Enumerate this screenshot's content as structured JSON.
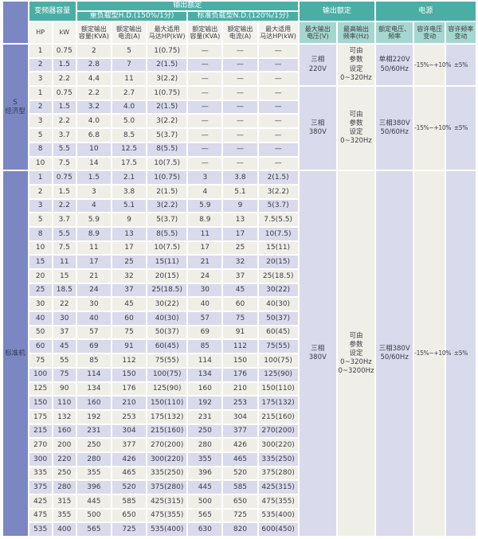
{
  "colors": {
    "header_teal": "#4BAEA4",
    "header_teal_light": "#A6D6D0",
    "section_blue": "#7B87C3",
    "row_lavender": "#D9DAEB",
    "row_beige": "#F0EFE7",
    "header_text": "#FFFFFF",
    "body_text": "#3B3B46"
  },
  "header": {
    "capacity": "变频器容量",
    "output_rating": "输出额定",
    "output_rating_2": "输出额定",
    "power": "电源",
    "heavy_duty": "重负载型H.D.(150%/1分)",
    "normal_duty": "标准负载型N.D.(120%/1分)",
    "cols": [
      "HP",
      "kW",
      "额定输出\n容量(KVA)",
      "额定输出\n电流(A)",
      "最大适用\n马达HP(kW)",
      "额定输出\n容量(KVA)",
      "额定输出\n电流(A)",
      "最大适用\n马达HP(kW)",
      "最大输出\n电压(V)",
      "最高输出\n频率(Hz)",
      "额定电压、\n频率",
      "容许电压\n变动",
      "容许频率\n变动"
    ]
  },
  "sections": [
    {
      "label": "S\n经济型",
      "stripe": [
        0,
        1,
        0,
        0,
        1,
        0,
        0,
        1,
        0
      ],
      "rows": [
        [
          "1",
          "0.75",
          "2",
          "5",
          "1(0.75)",
          "—",
          "—",
          "—"
        ],
        [
          "2",
          "1.5",
          "2.8",
          "7",
          "2(1.5)",
          "—",
          "—",
          "—"
        ],
        [
          "3",
          "2.2",
          "4.4",
          "11",
          "3(2.2)",
          "—",
          "—",
          "—"
        ],
        [
          "1",
          "0.75",
          "2.2",
          "2.7",
          "1(0.75)",
          "—",
          "—",
          "—"
        ],
        [
          "2",
          "1.5",
          "3.2",
          "4.0",
          "2(1.5)",
          "—",
          "—",
          "—"
        ],
        [
          "3",
          "2.2",
          "4.0",
          "5.0",
          "3(2.2)",
          "—",
          "—",
          "—"
        ],
        [
          "5",
          "3.7",
          "6.8",
          "8.5",
          "5(3.7)",
          "—",
          "—",
          "—"
        ],
        [
          "8",
          "5.5",
          "10",
          "12.5",
          "8(5.5)",
          "—",
          "—",
          "—"
        ],
        [
          "10",
          "7.5",
          "14",
          "17.5",
          "10(7.5)",
          "—",
          "—",
          "—"
        ]
      ],
      "groups": [
        {
          "span": 3,
          "max_output_voltage": "三相\n220V",
          "max_output_frequency": "可由\n参数\n设定\n0~320Hz",
          "rated_voltage_frequency": "单相220V\n50/60Hz",
          "voltage_tolerance": "-15%~+10%",
          "frequency_tolerance": "±5%"
        },
        {
          "span": 6,
          "max_output_voltage": "三相\n380V",
          "max_output_frequency": "可由\n参数\n设定\n0~320Hz",
          "rated_voltage_frequency": "三相380V\n50/60Hz",
          "voltage_tolerance": "-15%~+10%",
          "frequency_tolerance": "±5%"
        }
      ]
    },
    {
      "label": "标准机",
      "stripe": [
        1,
        0,
        1,
        0,
        1,
        0,
        1,
        0,
        1,
        0,
        1,
        0,
        1,
        0,
        1,
        0,
        1,
        0,
        1,
        0,
        1,
        0,
        1,
        0,
        0,
        1
      ],
      "rows": [
        [
          "1",
          "0.75",
          "1.5",
          "2.1",
          "1(0.75)",
          "3",
          "3.8",
          "2(1.5)"
        ],
        [
          "2",
          "1.5",
          "3",
          "3.8",
          "2(1.5)",
          "4",
          "5.1",
          "3(2.2)"
        ],
        [
          "3",
          "2.2",
          "4",
          "5.1",
          "3(2.2)",
          "5.9",
          "9",
          "5(3.7)"
        ],
        [
          "5",
          "3.7",
          "5.9",
          "9",
          "5(3.7)",
          "8.9",
          "13",
          "7.5(5.5)"
        ],
        [
          "8",
          "5.5",
          "8.9",
          "13",
          "8(5.5)",
          "11",
          "17",
          "10(7.5)"
        ],
        [
          "10",
          "7.5",
          "11",
          "17",
          "10(7.5)",
          "17",
          "25",
          "15(11)"
        ],
        [
          "15",
          "11",
          "17",
          "25",
          "15(11)",
          "21",
          "32",
          "20(15)"
        ],
        [
          "20",
          "15",
          "21",
          "32",
          "20(15)",
          "24",
          "37",
          "25(18.5)"
        ],
        [
          "25",
          "18.5",
          "24",
          "37",
          "25(18.5)",
          "30",
          "45",
          "30(22)"
        ],
        [
          "30",
          "22",
          "30",
          "45",
          "30(22)",
          "40",
          "60",
          "40(30)"
        ],
        [
          "40",
          "30",
          "40",
          "60",
          "40(30)",
          "57",
          "75",
          "50(37)"
        ],
        [
          "50",
          "37",
          "57",
          "75",
          "50(37)",
          "69",
          "91",
          "60(45)"
        ],
        [
          "60",
          "45",
          "69",
          "91",
          "60(45)",
          "85",
          "112",
          "75(55)"
        ],
        [
          "75",
          "55",
          "85",
          "112",
          "75(55)",
          "114",
          "150",
          "100(75)"
        ],
        [
          "100",
          "75",
          "114",
          "150",
          "100(75)",
          "134",
          "176",
          "125(90)"
        ],
        [
          "125",
          "90",
          "134",
          "176",
          "125(90)",
          "160",
          "210",
          "150(110)"
        ],
        [
          "150",
          "110",
          "160",
          "210",
          "150(110)",
          "192",
          "253",
          "175(132)"
        ],
        [
          "175",
          "132",
          "192",
          "253",
          "175(132)",
          "231",
          "304",
          "215(160)"
        ],
        [
          "215",
          "160",
          "231",
          "304",
          "215(160)",
          "250",
          "377",
          "270(200)"
        ],
        [
          "270",
          "200",
          "250",
          "377",
          "270(200)",
          "280",
          "426",
          "300(220)"
        ],
        [
          "300",
          "220",
          "280",
          "426",
          "300(220)",
          "355",
          "465",
          "335(250)"
        ],
        [
          "335",
          "250",
          "355",
          "465",
          "335(250)",
          "396",
          "520",
          "375(280)"
        ],
        [
          "375",
          "280",
          "396",
          "520",
          "375(280)",
          "445",
          "585",
          "425(315)"
        ],
        [
          "425",
          "315",
          "445",
          "585",
          "425(315)",
          "500",
          "650",
          "475(355)"
        ],
        [
          "475",
          "355",
          "500",
          "650",
          "475(355)",
          "565",
          "725",
          "535(400)"
        ],
        [
          "535",
          "400",
          "565",
          "725",
          "535(400)",
          "630",
          "820",
          "600(450)"
        ]
      ],
      "groups": [
        {
          "span": 26,
          "max_output_voltage": "三相\n380V",
          "max_output_frequency": "可由\n参数\n设定\n0~320Hz\n0~3200Hz",
          "rated_voltage_frequency": "三相380V\n50/60Hz",
          "voltage_tolerance": "-15%~+10%",
          "frequency_tolerance": "±5%"
        }
      ]
    }
  ]
}
